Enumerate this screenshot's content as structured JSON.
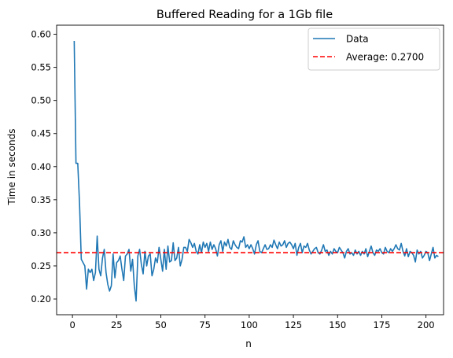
{
  "chart_data": {
    "type": "line",
    "title": "Buffered Reading for a 1Gb file",
    "xlabel": "n",
    "ylabel": "Time in seconds",
    "xlim": [
      -8.95,
      209.95
    ],
    "ylim": [
      0.17625,
      0.61375
    ],
    "x_ticks": [
      0,
      25,
      50,
      75,
      100,
      125,
      150,
      175,
      200
    ],
    "x_tick_labels": [
      "0",
      "25",
      "50",
      "75",
      "100",
      "125",
      "150",
      "175",
      "200"
    ],
    "y_ticks": [
      0.2,
      0.25,
      0.3,
      0.35,
      0.4,
      0.45,
      0.5,
      0.55,
      0.6
    ],
    "y_tick_labels": [
      "0.20",
      "0.25",
      "0.30",
      "0.35",
      "0.40",
      "0.45",
      "0.50",
      "0.55",
      "0.60"
    ],
    "grid": false,
    "legend": {
      "position": "top-right"
    },
    "series": [
      {
        "name": "Data",
        "color": "#1f77b4",
        "style": "solid",
        "x_start": 1,
        "x_step": 1,
        "values": [
          0.59,
          0.405,
          0.405,
          0.345,
          0.26,
          0.255,
          0.25,
          0.215,
          0.245,
          0.24,
          0.245,
          0.228,
          0.24,
          0.295,
          0.245,
          0.235,
          0.262,
          0.275,
          0.24,
          0.222,
          0.212,
          0.22,
          0.268,
          0.232,
          0.255,
          0.258,
          0.265,
          0.245,
          0.228,
          0.265,
          0.268,
          0.275,
          0.242,
          0.26,
          0.22,
          0.197,
          0.265,
          0.275,
          0.252,
          0.238,
          0.272,
          0.25,
          0.265,
          0.268,
          0.235,
          0.245,
          0.262,
          0.255,
          0.278,
          0.26,
          0.242,
          0.275,
          0.245,
          0.28,
          0.256,
          0.258,
          0.285,
          0.258,
          0.262,
          0.278,
          0.25,
          0.26,
          0.278,
          0.278,
          0.272,
          0.29,
          0.285,
          0.278,
          0.284,
          0.272,
          0.268,
          0.282,
          0.27,
          0.286,
          0.278,
          0.284,
          0.272,
          0.286,
          0.275,
          0.282,
          0.276,
          0.265,
          0.282,
          0.288,
          0.272,
          0.286,
          0.28,
          0.29,
          0.278,
          0.275,
          0.288,
          0.282,
          0.278,
          0.276,
          0.288,
          0.286,
          0.294,
          0.278,
          0.282,
          0.276,
          0.282,
          0.276,
          0.268,
          0.282,
          0.288,
          0.272,
          0.27,
          0.276,
          0.282,
          0.275,
          0.276,
          0.282,
          0.278,
          0.289,
          0.282,
          0.276,
          0.286,
          0.28,
          0.282,
          0.288,
          0.278,
          0.284,
          0.286,
          0.282,
          0.276,
          0.284,
          0.266,
          0.278,
          0.284,
          0.27,
          0.28,
          0.278,
          0.284,
          0.274,
          0.268,
          0.272,
          0.276,
          0.278,
          0.27,
          0.268,
          0.274,
          0.282,
          0.272,
          0.274,
          0.266,
          0.272,
          0.268,
          0.276,
          0.272,
          0.27,
          0.278,
          0.274,
          0.27,
          0.262,
          0.272,
          0.276,
          0.268,
          0.27,
          0.266,
          0.274,
          0.268,
          0.272,
          0.266,
          0.272,
          0.268,
          0.276,
          0.264,
          0.272,
          0.28,
          0.27,
          0.266,
          0.274,
          0.272,
          0.276,
          0.27,
          0.268,
          0.278,
          0.272,
          0.27,
          0.276,
          0.272,
          0.276,
          0.282,
          0.276,
          0.274,
          0.284,
          0.272,
          0.265,
          0.276,
          0.264,
          0.272,
          0.27,
          0.266,
          0.256,
          0.274,
          0.268,
          0.272,
          0.262,
          0.266,
          0.272,
          0.27,
          0.258,
          0.268,
          0.278,
          0.262,
          0.266,
          0.264
        ]
      },
      {
        "name": "Average: 0.2700",
        "color": "#ff0000",
        "style": "dashed",
        "type": "hline",
        "y": 0.27
      }
    ]
  }
}
